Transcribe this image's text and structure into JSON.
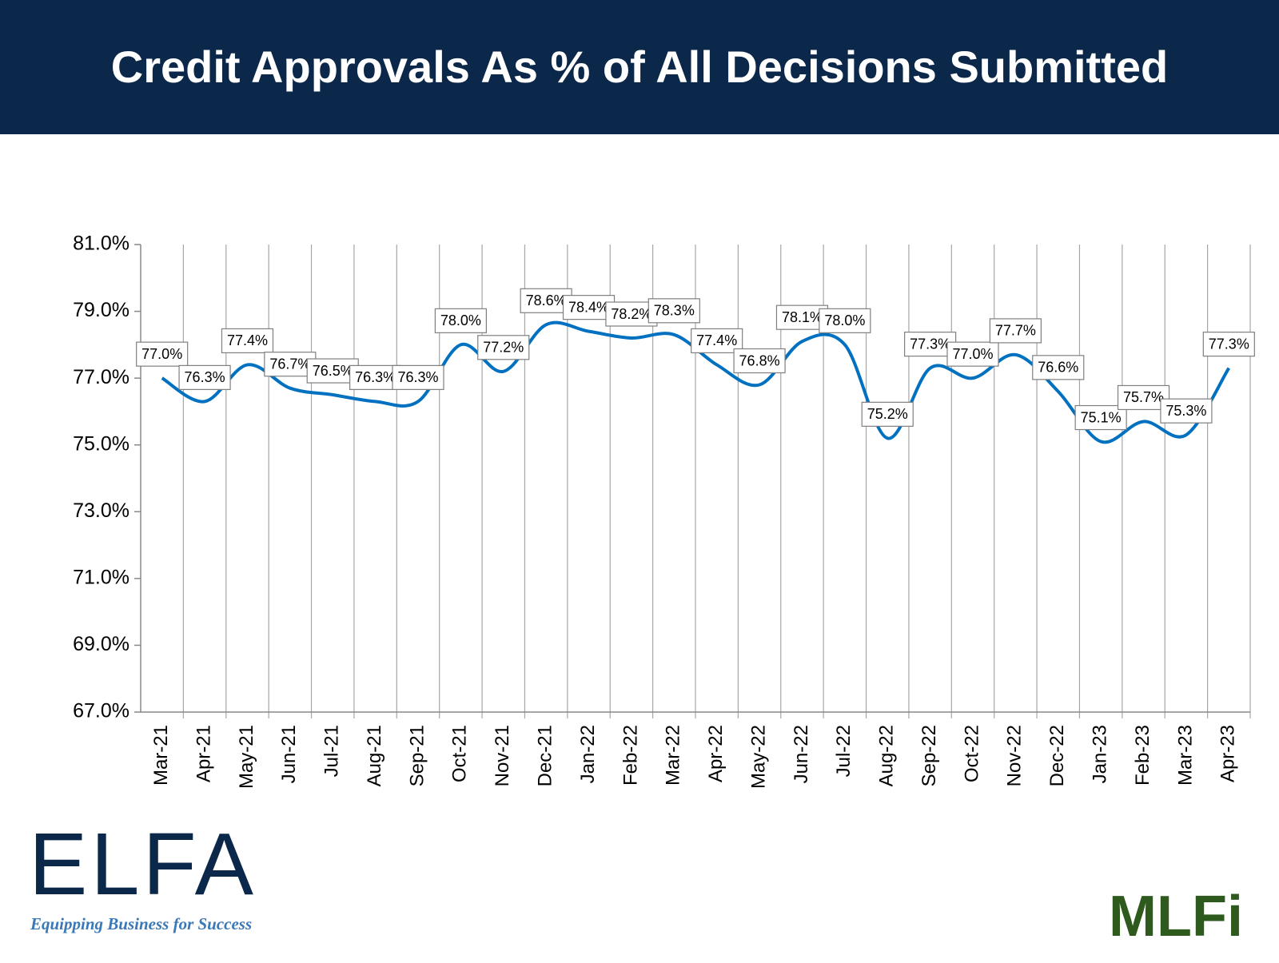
{
  "chart_data": {
    "type": "line",
    "title": "Credit Approvals As % of All Decisions Submitted",
    "categories": [
      "Mar-21",
      "Apr-21",
      "May-21",
      "Jun-21",
      "Jul-21",
      "Aug-21",
      "Sep-21",
      "Oct-21",
      "Nov-21",
      "Dec-21",
      "Jan-22",
      "Feb-22",
      "Mar-22",
      "Apr-22",
      "May-22",
      "Jun-22",
      "Jul-22",
      "Aug-22",
      "Sep-22",
      "Oct-22",
      "Nov-22",
      "Dec-22",
      "Jan-23",
      "Feb-23",
      "Mar-23",
      "Apr-23"
    ],
    "series": [
      {
        "color": "#0070c0",
        "values": [
          77.0,
          76.3,
          77.4,
          76.7,
          76.5,
          76.3,
          76.3,
          78.0,
          77.2,
          78.6,
          78.4,
          78.2,
          78.3,
          77.4,
          76.8,
          78.1,
          78.0,
          75.2,
          77.3,
          77.0,
          77.7,
          76.6,
          75.1,
          75.7,
          75.3,
          77.3
        ],
        "value_labels": [
          "77.0%",
          "76.3%",
          "77.4%",
          "76.7%",
          "76.5%",
          "76.3%",
          "76.3%",
          "78.0%",
          "77.2%",
          "78.6%",
          "78.4%",
          "78.2%",
          "78.3%",
          "77.4%",
          "76.8%",
          "78.1%",
          "78.0%",
          "75.2%",
          "77.3%",
          "77.0%",
          "77.7%",
          "76.6%",
          "75.1%",
          "75.7%",
          "75.3%",
          "77.3%"
        ]
      }
    ],
    "ylim": [
      67,
      81
    ],
    "yticks": [
      {
        "value": 67,
        "label": "67.0%"
      },
      {
        "value": 69,
        "label": "69.0%"
      },
      {
        "value": 71,
        "label": "71.0%"
      },
      {
        "value": 73,
        "label": "73.0%"
      },
      {
        "value": 75,
        "label": "75.0%"
      },
      {
        "value": 77,
        "label": "77.0%"
      },
      {
        "value": 79,
        "label": "79.0%"
      },
      {
        "value": 81,
        "label": "81.0%"
      }
    ],
    "grid": true,
    "smooth": true
  },
  "logos": {
    "elfa": "ELFA",
    "elfa_tagline": "Equipping Business for Success",
    "mlfi": "MLFi"
  }
}
